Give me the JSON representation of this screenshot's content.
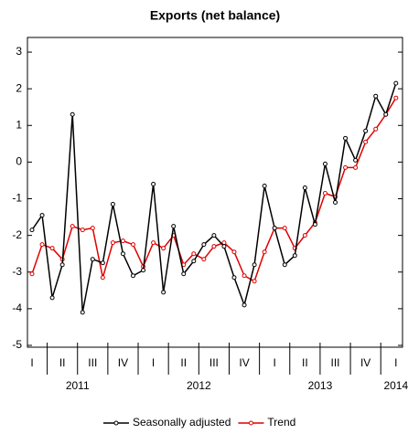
{
  "chart_data": {
    "type": "line",
    "title": "Exports (net balance)",
    "categories": [
      "I",
      null,
      null,
      "II",
      null,
      null,
      "III",
      null,
      null,
      "IV",
      null,
      null,
      "I",
      null,
      null,
      "II",
      null,
      null,
      "III",
      null,
      null,
      "IV",
      null,
      null,
      "I",
      null,
      null,
      "II",
      null,
      null,
      "III",
      null,
      null,
      "IV",
      null,
      null,
      "I"
    ],
    "years": [
      "2011",
      "2012",
      "2013",
      "2014"
    ],
    "series": [
      {
        "name": "Seasonally adjusted",
        "color": "#000000",
        "values": [
          -1.85,
          -1.45,
          -3.7,
          -2.8,
          1.3,
          -4.1,
          -2.65,
          -2.75,
          -1.15,
          -2.5,
          -3.1,
          -2.95,
          -0.6,
          -3.55,
          -1.75,
          -3.05,
          -2.7,
          -2.25,
          -2.0,
          -2.3,
          -3.15,
          -3.9,
          -2.8,
          -0.65,
          -1.8,
          -2.8,
          -2.55,
          -0.7,
          -1.7,
          -0.05,
          -1.1,
          0.65,
          0.05,
          0.85,
          1.8,
          1.3,
          2.15
        ]
      },
      {
        "name": "Trend",
        "color": "#e00000",
        "values": [
          -3.05,
          -2.25,
          -2.35,
          -2.65,
          -1.75,
          -1.85,
          -1.8,
          -3.15,
          -2.2,
          -2.15,
          -2.25,
          -2.85,
          -2.2,
          -2.35,
          -2.0,
          -2.8,
          -2.5,
          -2.65,
          -2.3,
          -2.2,
          -2.45,
          -3.1,
          -3.25,
          -2.45,
          -1.8,
          -1.8,
          -2.35,
          -2.0,
          -1.65,
          -0.85,
          -0.95,
          -0.15,
          -0.15,
          0.55,
          0.9,
          1.3,
          1.75
        ]
      }
    ],
    "ylim": [
      -5.05,
      3.4
    ],
    "yticks": [
      -5,
      -4,
      -3,
      -2,
      -1,
      0,
      1,
      2,
      3
    ]
  }
}
